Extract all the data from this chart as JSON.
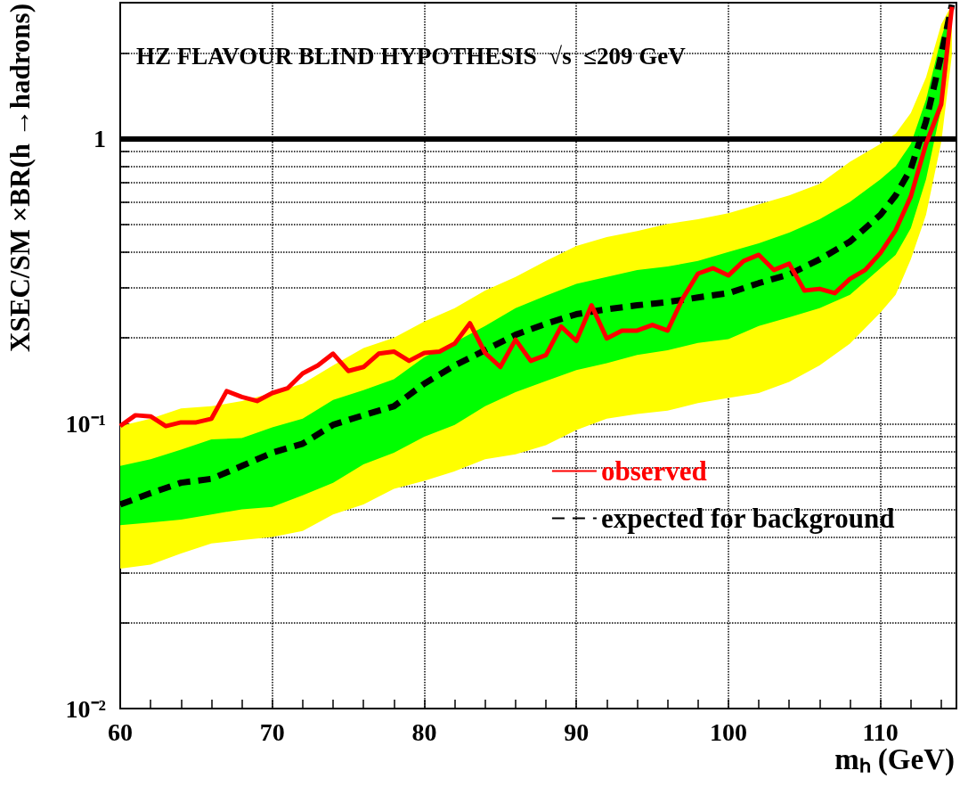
{
  "chart_data": {
    "type": "line",
    "title": "HZ FLAVOUR BLIND HYPOTHESIS  √s  ≤209 GeV",
    "xlabel": "mₕ (GeV)",
    "ylabel": "XSEC/SM ×BR(h →hadrons)",
    "xlim": [
      60,
      115
    ],
    "ylim": [
      0.01,
      3
    ],
    "xticks": [
      60,
      {
        "value": 62,
        "label": null
      },
      {
        "value": 64,
        "label": null
      },
      {
        "value": 66,
        "label": null
      },
      {
        "value": 68,
        "label": null
      },
      70,
      {
        "value": 72,
        "label": null
      },
      {
        "value": 74,
        "label": null
      },
      {
        "value": 76,
        "label": null
      },
      {
        "value": 78,
        "label": null
      },
      80,
      {
        "value": 82,
        "label": null
      },
      {
        "value": 84,
        "label": null
      },
      {
        "value": 86,
        "label": null
      },
      {
        "value": 88,
        "label": null
      },
      90,
      {
        "value": 92,
        "label": null
      },
      {
        "value": 94,
        "label": null
      },
      {
        "value": 96,
        "label": null
      },
      {
        "value": 98,
        "label": null
      },
      100,
      {
        "value": 102,
        "label": null
      },
      {
        "value": 104,
        "label": null
      },
      {
        "value": 106,
        "label": null
      },
      {
        "value": 108,
        "label": null
      },
      110,
      {
        "value": 112,
        "label": null
      },
      {
        "value": 114,
        "label": null
      }
    ],
    "yticks": [
      {
        "value": 0.01,
        "label": "10⁻²"
      },
      {
        "value": 0.02,
        "label": null
      },
      {
        "value": 0.03,
        "label": null
      },
      {
        "value": 0.04,
        "label": null
      },
      {
        "value": 0.05,
        "label": null
      },
      {
        "value": 0.06,
        "label": null
      },
      {
        "value": 0.07,
        "label": null
      },
      {
        "value": 0.08,
        "label": null
      },
      {
        "value": 0.09,
        "label": null
      },
      {
        "value": 0.1,
        "label": "10⁻¹"
      },
      {
        "value": 0.2,
        "label": null
      },
      {
        "value": 0.3,
        "label": null
      },
      {
        "value": 0.4,
        "label": null
      },
      {
        "value": 0.5,
        "label": null
      },
      {
        "value": 0.6,
        "label": null
      },
      {
        "value": 0.7,
        "label": null
      },
      {
        "value": 0.8,
        "label": null
      },
      {
        "value": 0.9,
        "label": null
      },
      1,
      {
        "value": 2,
        "label": null
      }
    ],
    "log": "y",
    "grid": true,
    "legend": "bottom right",
    "marker": "none",
    "ref_lines": [
      {
        "axis": "y",
        "value": 1,
        "color": "#000000"
      }
    ],
    "series": [
      {
        "color": "#ffff00",
        "x": [
          60,
          62,
          64,
          66,
          68,
          70,
          72,
          74,
          76,
          78,
          80,
          82,
          84,
          86,
          88,
          90,
          92,
          94,
          96,
          98,
          100,
          102,
          104,
          106,
          108,
          110,
          111,
          112,
          113,
          114,
          114.7
        ],
        "values": [
          null,
          null,
          null,
          null,
          null,
          null,
          null,
          null,
          null,
          null,
          null,
          null,
          null,
          null,
          null,
          null,
          null,
          null,
          null,
          null,
          null,
          null,
          null,
          null,
          null,
          null,
          null,
          null,
          null,
          null,
          null
        ],
        "lower": [
          0.031,
          0.032,
          0.035,
          0.038,
          0.039,
          0.04,
          0.042,
          0.048,
          0.052,
          0.059,
          0.063,
          0.068,
          0.075,
          0.078,
          0.084,
          0.095,
          0.104,
          0.108,
          0.111,
          0.118,
          0.123,
          0.128,
          0.14,
          0.16,
          0.191,
          0.245,
          0.283,
          0.377,
          0.54,
          0.97,
          1.96
        ],
        "upper": [
          0.098,
          0.104,
          0.113,
          0.115,
          0.12,
          0.128,
          0.138,
          0.16,
          0.184,
          0.2,
          0.228,
          0.254,
          0.293,
          0.327,
          0.372,
          0.42,
          0.451,
          0.474,
          0.502,
          0.521,
          0.547,
          0.588,
          0.632,
          0.694,
          0.83,
          0.958,
          1.04,
          1.23,
          1.64,
          2.52,
          2.95
        ]
      },
      {
        "color": "#00ff00",
        "x": [
          60,
          62,
          64,
          66,
          68,
          70,
          72,
          74,
          76,
          78,
          80,
          82,
          84,
          86,
          88,
          90,
          92,
          94,
          96,
          98,
          100,
          102,
          104,
          106,
          108,
          110,
          111,
          112,
          113,
          114,
          114.7
        ],
        "values": [
          null,
          null,
          null,
          null,
          null,
          null,
          null,
          null,
          null,
          null,
          null,
          null,
          null,
          null,
          null,
          null,
          null,
          null,
          null,
          null,
          null,
          null,
          null,
          null,
          null,
          null,
          null,
          null,
          null,
          null,
          null
        ],
        "lower": [
          0.044,
          0.045,
          0.046,
          0.048,
          0.05,
          0.051,
          0.056,
          0.062,
          0.072,
          0.079,
          0.09,
          0.099,
          0.115,
          0.129,
          0.141,
          0.154,
          0.163,
          0.174,
          0.181,
          0.192,
          0.198,
          0.22,
          0.236,
          0.254,
          0.283,
          0.351,
          0.391,
          0.485,
          0.719,
          1.28,
          2.6
        ],
        "upper": [
          0.071,
          0.075,
          0.081,
          0.088,
          0.089,
          0.097,
          0.104,
          0.121,
          0.131,
          0.143,
          0.171,
          0.193,
          0.22,
          0.254,
          0.281,
          0.309,
          0.327,
          0.346,
          0.356,
          0.372,
          0.4,
          0.429,
          0.468,
          0.521,
          0.6,
          0.719,
          0.8,
          0.958,
          1.37,
          2.26,
          2.95
        ]
      },
      {
        "name": "expected for background",
        "color": "#000000",
        "line_style": "dashed",
        "x": [
          60,
          62,
          64,
          66,
          68,
          70,
          72,
          74,
          76,
          78,
          80,
          82,
          84,
          86,
          88,
          90,
          92,
          94,
          96,
          98,
          100,
          102,
          104,
          106,
          108,
          110,
          111,
          112,
          113,
          114,
          114.7
        ],
        "values": [
          0.052,
          0.057,
          0.062,
          0.064,
          0.071,
          0.079,
          0.085,
          0.099,
          0.107,
          0.115,
          0.138,
          0.16,
          0.181,
          0.205,
          0.224,
          0.242,
          0.252,
          0.26,
          0.267,
          0.277,
          0.287,
          0.311,
          0.334,
          0.377,
          0.435,
          0.54,
          0.632,
          0.784,
          1.15,
          1.96,
          2.95
        ]
      },
      {
        "name": "observed",
        "color": "#ff0000",
        "line_style": "solid",
        "x": [
          60,
          61,
          62,
          63,
          64,
          65,
          66,
          67,
          68,
          69,
          70,
          71,
          72,
          73,
          74,
          75,
          76,
          77,
          78,
          79,
          80,
          81,
          82,
          83,
          84,
          85,
          86,
          87,
          88,
          89,
          90,
          91,
          92,
          93,
          94,
          95,
          96,
          97,
          98,
          99,
          100,
          101,
          102,
          103,
          104,
          105,
          106,
          107,
          108,
          109,
          110,
          111,
          112,
          113,
          114,
          114.7
        ],
        "values": [
          0.098,
          0.107,
          0.106,
          0.098,
          0.101,
          0.101,
          0.104,
          0.13,
          0.124,
          0.12,
          0.128,
          0.133,
          0.15,
          0.16,
          0.176,
          0.153,
          0.158,
          0.176,
          0.179,
          0.166,
          0.177,
          0.179,
          0.191,
          0.225,
          0.177,
          0.158,
          0.197,
          0.166,
          0.174,
          0.219,
          0.195,
          0.26,
          0.199,
          0.212,
          0.212,
          0.222,
          0.212,
          0.275,
          0.336,
          0.351,
          0.331,
          0.372,
          0.391,
          0.346,
          0.364,
          0.293,
          0.297,
          0.287,
          0.322,
          0.346,
          0.397,
          0.477,
          0.627,
          0.958,
          1.32,
          2.9
        ]
      }
    ]
  }
}
